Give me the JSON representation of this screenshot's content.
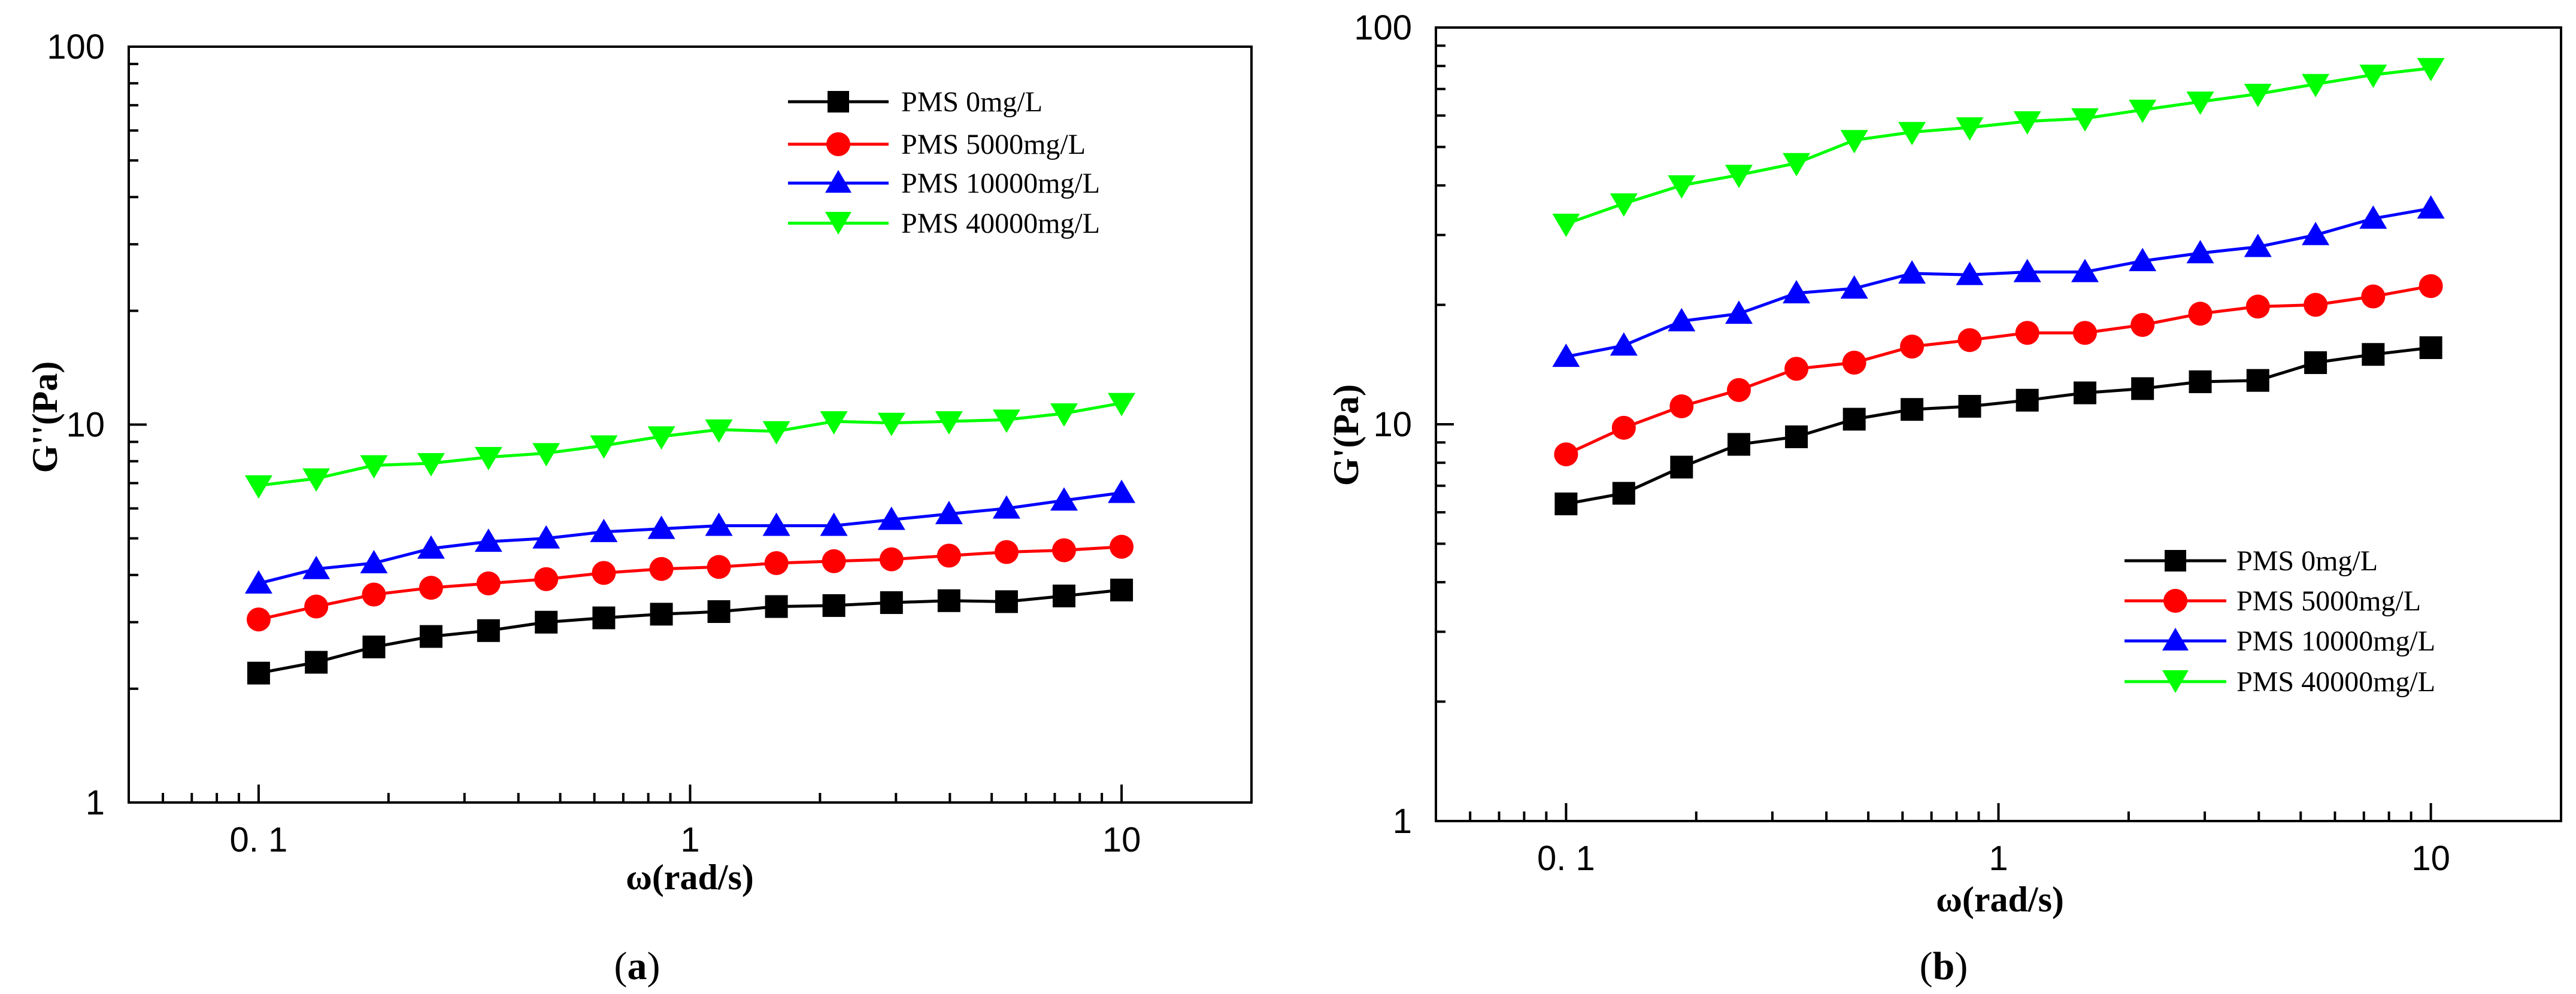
{
  "chart_data": [
    {
      "type": "line",
      "panel_label": "(a)",
      "panel_letter": "a",
      "xlabel": "ω(rad/s)",
      "ylabel": "G''(Pa)",
      "xscale": "log",
      "yscale": "log",
      "xlim": [
        0.05,
        20
      ],
      "ylim": [
        1,
        100
      ],
      "xticks": [
        0.1,
        1,
        10
      ],
      "xtick_labels": [
        "0. 1",
        "1",
        "10"
      ],
      "yticks": [
        1,
        10,
        100
      ],
      "ytick_labels": [
        "1",
        "10",
        "100"
      ],
      "legend_position": "top-right",
      "x": [
        0.1,
        0.136,
        0.185,
        0.251,
        0.341,
        0.464,
        0.631,
        0.858,
        1.166,
        1.585,
        2.154,
        2.929,
        3.981,
        5.412,
        7.356,
        10
      ],
      "series": [
        {
          "name": "PMS  0mg/L",
          "marker": "square",
          "color": "#000000",
          "values": [
            2.2,
            2.35,
            2.58,
            2.75,
            2.85,
            3.0,
            3.08,
            3.15,
            3.2,
            3.3,
            3.32,
            3.38,
            3.42,
            3.4,
            3.52,
            3.65
          ]
        },
        {
          "name": "PMS  5000mg/L",
          "marker": "circle",
          "color": "#ff0000",
          "values": [
            3.05,
            3.3,
            3.55,
            3.7,
            3.8,
            3.9,
            4.05,
            4.15,
            4.2,
            4.3,
            4.35,
            4.4,
            4.5,
            4.6,
            4.65,
            4.75
          ]
        },
        {
          "name": "PMS  10000mg/L",
          "marker": "triangle-up",
          "color": "#0000ff",
          "values": [
            3.8,
            4.15,
            4.3,
            4.7,
            4.9,
            5.0,
            5.2,
            5.3,
            5.4,
            5.4,
            5.4,
            5.6,
            5.8,
            6.0,
            6.3,
            6.6
          ]
        },
        {
          "name": "PMS  40000mg/L",
          "marker": "triangle-down",
          "color": "#00ff00",
          "values": [
            6.9,
            7.2,
            7.8,
            7.9,
            8.2,
            8.4,
            8.8,
            9.3,
            9.7,
            9.6,
            10.2,
            10.1,
            10.2,
            10.3,
            10.7,
            11.4
          ]
        }
      ]
    },
    {
      "type": "line",
      "panel_label": "(b)",
      "panel_letter": "b",
      "xlabel": "ω(rad/s)",
      "ylabel": "G'(Pa)",
      "xscale": "log",
      "yscale": "log",
      "xlim": [
        0.05,
        20
      ],
      "ylim": [
        1,
        100
      ],
      "xticks": [
        0.1,
        1,
        10
      ],
      "xtick_labels": [
        "0. 1",
        "1",
        "10"
      ],
      "yticks": [
        1,
        10,
        100
      ],
      "ytick_labels": [
        "1",
        "10",
        "100"
      ],
      "legend_position": "bottom-right",
      "x": [
        0.1,
        0.136,
        0.185,
        0.251,
        0.341,
        0.464,
        0.631,
        0.858,
        1.166,
        1.585,
        2.154,
        2.929,
        3.981,
        5.412,
        7.356,
        10
      ],
      "series": [
        {
          "name": "PMS  0mg/L",
          "marker": "square",
          "color": "#000000",
          "values": [
            6.3,
            6.7,
            7.8,
            8.9,
            9.3,
            10.3,
            10.9,
            11.1,
            11.5,
            12.0,
            12.3,
            12.8,
            12.9,
            14.3,
            15.0,
            15.6
          ]
        },
        {
          "name": "PMS  5000mg/L",
          "marker": "circle",
          "color": "#ff0000",
          "values": [
            8.4,
            9.8,
            11.1,
            12.2,
            13.8,
            14.3,
            15.7,
            16.3,
            17.0,
            17.0,
            17.8,
            19.0,
            19.8,
            20.0,
            21.0,
            22.3
          ]
        },
        {
          "name": "PMS  10000mg/L",
          "marker": "triangle-up",
          "color": "#0000ff",
          "values": [
            14.8,
            15.8,
            18.2,
            19.0,
            21.4,
            22.0,
            24.0,
            23.8,
            24.2,
            24.2,
            25.8,
            27.0,
            28.0,
            30.0,
            33.0,
            35.0
          ]
        },
        {
          "name": "PMS  40000mg/L",
          "marker": "triangle-down",
          "color": "#00ff00",
          "values": [
            32.0,
            36.0,
            40.0,
            42.5,
            45.5,
            52.0,
            54.5,
            56.0,
            58.0,
            59.0,
            62.0,
            65.0,
            68.0,
            72.0,
            76.0,
            79.0
          ]
        }
      ]
    }
  ]
}
